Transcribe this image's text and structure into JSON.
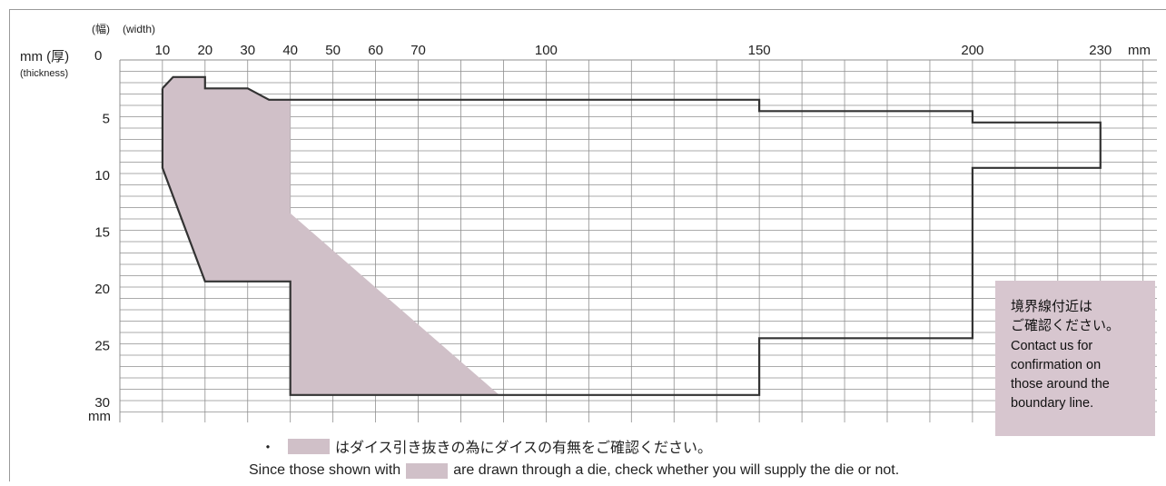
{
  "chart_data": {
    "type": "area",
    "x_axis": {
      "unit_label": "(幅)",
      "unit_label_en": "(width)",
      "unit_suffix": "mm",
      "ticks": [
        0,
        10,
        20,
        30,
        40,
        50,
        60,
        70,
        100,
        150,
        200,
        230
      ],
      "range": [
        0,
        230
      ]
    },
    "y_axis": {
      "unit_label": "mm (厚)",
      "unit_label_en": "(thickness)",
      "origin_label": "0",
      "unit_suffix": "mm",
      "ticks": [
        5,
        10,
        15,
        20,
        25,
        30
      ],
      "range": [
        0,
        31
      ],
      "direction": "downward"
    },
    "grid": true,
    "series": [
      {
        "kind": "boundary-outline",
        "points": [
          [
            10,
            2.5
          ],
          [
            12.5,
            1.5
          ],
          [
            20,
            1.5
          ],
          [
            20,
            2.5
          ],
          [
            30,
            2.5
          ],
          [
            35,
            3.5
          ],
          [
            40,
            3.5
          ],
          [
            150,
            3.5
          ],
          [
            150,
            4.5
          ],
          [
            200,
            4.5
          ],
          [
            200,
            5.5
          ],
          [
            230,
            5.5
          ],
          [
            230,
            9.5
          ],
          [
            200,
            9.5
          ],
          [
            200,
            24.5
          ],
          [
            150,
            24.5
          ],
          [
            150,
            29.5
          ],
          [
            40,
            29.5
          ],
          [
            40,
            19.5
          ],
          [
            20,
            19.5
          ],
          [
            10,
            9.5
          ],
          [
            10,
            2.5
          ]
        ]
      },
      {
        "kind": "die-drawn-region",
        "points": [
          [
            10,
            2.5
          ],
          [
            12.5,
            1.5
          ],
          [
            20,
            1.5
          ],
          [
            20,
            2.5
          ],
          [
            30,
            2.5
          ],
          [
            35,
            3.5
          ],
          [
            40,
            3.5
          ],
          [
            40,
            13.5
          ],
          [
            89,
            29.5
          ],
          [
            40,
            29.5
          ],
          [
            40,
            19.5
          ],
          [
            20,
            19.5
          ],
          [
            10,
            9.5
          ]
        ]
      }
    ]
  },
  "note": {
    "jp_line1": "境界線付近は",
    "jp_line2": "ご確認ください。",
    "en_line1": "Contact us for",
    "en_line2": "confirmation on",
    "en_line3": "those around the",
    "en_line4": "boundary line."
  },
  "footer": {
    "bullet": "・",
    "jp_text": "はダイス引き抜きの為にダイスの有無をご確認ください。",
    "en_before": "Since those shown with",
    "en_after": "are drawn through a die, check whether you will supply the die or not."
  },
  "colors": {
    "shade": "#d0c0c8",
    "note_bg": "#d7c6cf",
    "grid": "#8f8f8f",
    "outline": "#333333"
  }
}
